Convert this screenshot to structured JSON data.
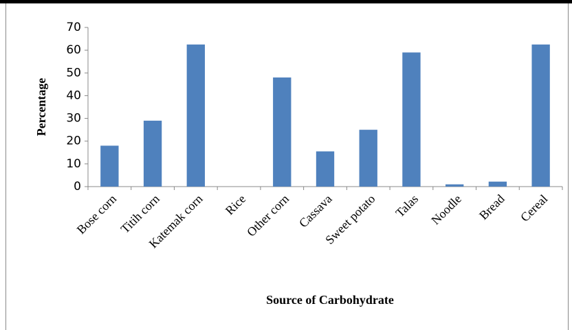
{
  "chart_data": {
    "type": "bar",
    "xlabel": "Source of Carbohydrate",
    "ylabel": "Percentage",
    "categories": [
      "Bose corn",
      "Titih corn",
      "Katemak corn",
      "Rice",
      "Other corn",
      "Cassava",
      "Sweet potato",
      "Talas",
      "Noodle",
      "Bread",
      "Cereal"
    ],
    "values": [
      18,
      29,
      62.5,
      0,
      48,
      15.5,
      25,
      59,
      1,
      2.2,
      62.5
    ],
    "color": "#4f81bd",
    "ylim": [
      0,
      70
    ],
    "yticks": [
      0,
      10,
      20,
      30,
      40,
      50,
      60,
      70
    ],
    "grid": false
  }
}
